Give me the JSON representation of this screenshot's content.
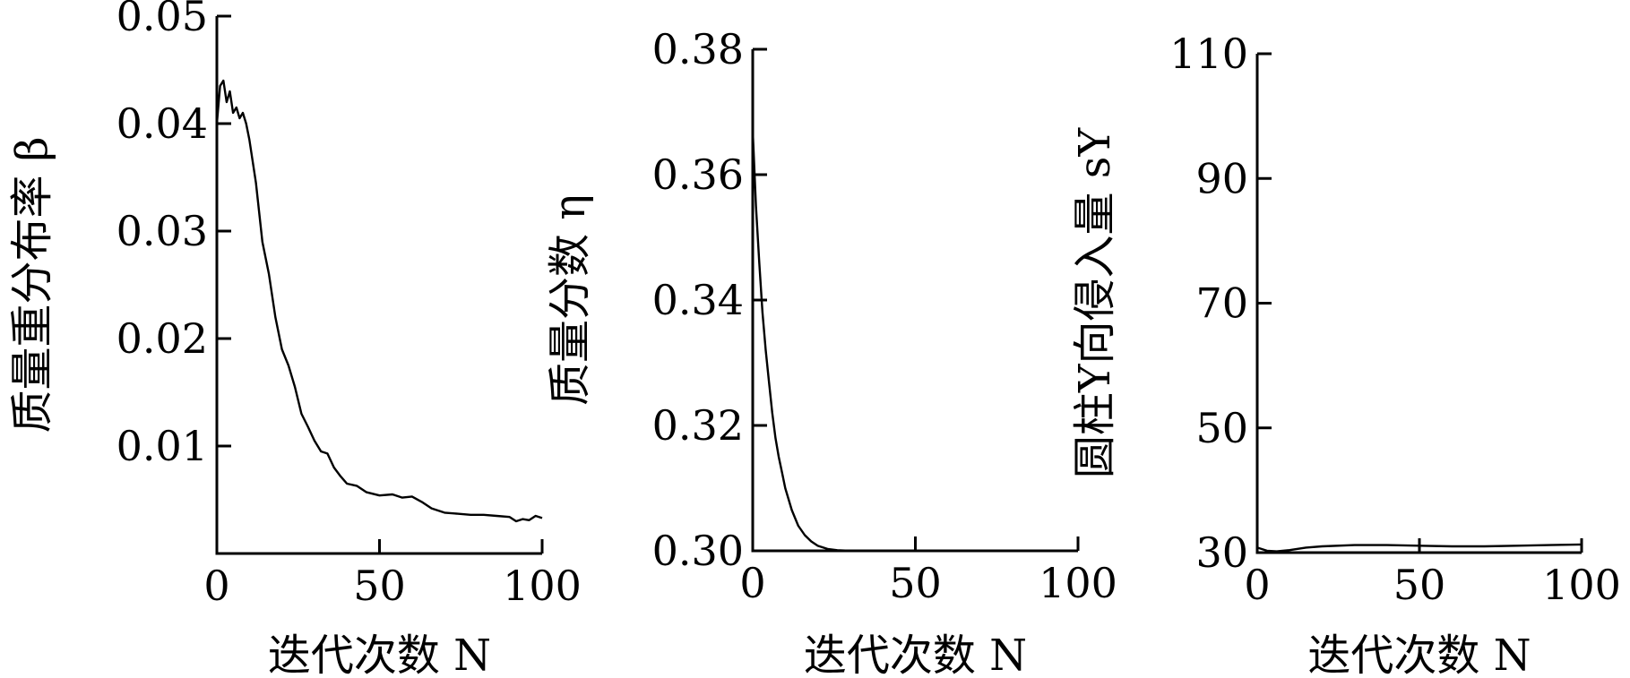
{
  "chart_data": [
    {
      "type": "line",
      "xlabel": "迭代次数 N",
      "ylabel": "质量重分布率 β",
      "xlim": [
        0,
        100
      ],
      "ylim": [
        0,
        0.05
      ],
      "xticks": [
        "0",
        "50",
        "100"
      ],
      "yticks": [
        "0.01",
        "0.02",
        "0.03",
        "0.04",
        "0.05"
      ],
      "grid": false,
      "series": [
        {
          "x": [
            0,
            1,
            2,
            3,
            4,
            5,
            6,
            7,
            8,
            9,
            10,
            12,
            14,
            16,
            18,
            20,
            22,
            24,
            26,
            28,
            30,
            32,
            34,
            36,
            38,
            40,
            43,
            46,
            50,
            54,
            57,
            60,
            63,
            66,
            70,
            74,
            78,
            82,
            86,
            90,
            92,
            94,
            96,
            98,
            100
          ],
          "values": [
            0.04,
            0.0435,
            0.044,
            0.042,
            0.043,
            0.041,
            0.0415,
            0.0405,
            0.041,
            0.04,
            0.0385,
            0.0345,
            0.029,
            0.026,
            0.022,
            0.019,
            0.0175,
            0.0155,
            0.013,
            0.0118,
            0.0105,
            0.0095,
            0.0093,
            0.008,
            0.0072,
            0.0065,
            0.0063,
            0.0057,
            0.0054,
            0.0055,
            0.0052,
            0.0053,
            0.0048,
            0.0042,
            0.0038,
            0.0037,
            0.0036,
            0.0036,
            0.0035,
            0.0034,
            0.003,
            0.0032,
            0.0031,
            0.0035,
            0.0033
          ]
        }
      ]
    },
    {
      "type": "line",
      "xlabel": "迭代次数 N",
      "ylabel": "质量分数 η",
      "xlim": [
        0,
        100
      ],
      "ylim": [
        0.3,
        0.38
      ],
      "xticks": [
        "0",
        "50",
        "100"
      ],
      "yticks": [
        "0.30",
        "0.32",
        "0.34",
        "0.36",
        "0.38"
      ],
      "grid": false,
      "series": [
        {
          "x": [
            0,
            1,
            2,
            3,
            4,
            5,
            6,
            7,
            8,
            9,
            10,
            12,
            14,
            16,
            18,
            20,
            23,
            26,
            30,
            40,
            50,
            60,
            70,
            80,
            90,
            100
          ],
          "values": [
            0.367,
            0.355,
            0.346,
            0.338,
            0.332,
            0.327,
            0.322,
            0.318,
            0.315,
            0.3125,
            0.31,
            0.3065,
            0.304,
            0.3025,
            0.3015,
            0.3008,
            0.3003,
            0.3001,
            0.3,
            0.3,
            0.3,
            0.3,
            0.3,
            0.3,
            0.3,
            0.3
          ]
        }
      ]
    },
    {
      "type": "line",
      "xlabel": "迭代次数 N",
      "ylabel": "圆柱Y向侵入量 sY",
      "xlim": [
        0,
        100
      ],
      "ylim": [
        30,
        110
      ],
      "xticks": [
        "0",
        "50",
        "100"
      ],
      "yticks": [
        "30",
        "50",
        "70",
        "90",
        "110"
      ],
      "grid": false,
      "series": [
        {
          "x": [
            0,
            3,
            6,
            10,
            15,
            20,
            30,
            40,
            50,
            60,
            70,
            80,
            90,
            100
          ],
          "values": [
            30.8,
            30.3,
            30.2,
            30.4,
            30.8,
            31.0,
            31.2,
            31.2,
            31.1,
            31.0,
            31.0,
            31.1,
            31.2,
            31.3
          ]
        }
      ]
    }
  ]
}
